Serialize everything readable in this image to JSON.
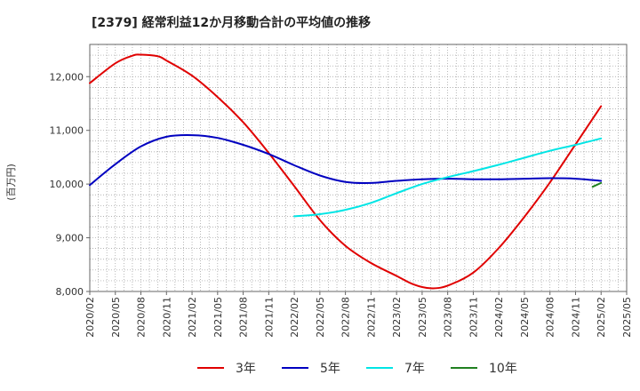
{
  "chart_data": {
    "type": "line",
    "title": "[2379]  経常利益12か月移動合計の平均値の推移",
    "ylabel": "(百万円)",
    "xlabel": "",
    "ylim": [
      8000,
      12600
    ],
    "yticks": [
      8000,
      9000,
      10000,
      11000,
      12000
    ],
    "ytick_labels": [
      "8,000",
      "9,000",
      "10,000",
      "11,000",
      "12,000"
    ],
    "x_range": [
      "2020-02",
      "2025-05"
    ],
    "xtick_labels": [
      "2020/02",
      "2020/05",
      "2020/08",
      "2020/11",
      "2021/02",
      "2021/05",
      "2021/08",
      "2021/11",
      "2022/02",
      "2022/05",
      "2022/08",
      "2022/11",
      "2023/02",
      "2023/05",
      "2023/08",
      "2023/11",
      "2024/02",
      "2024/05",
      "2024/08",
      "2024/11",
      "2025/02",
      "2025/05"
    ],
    "grid": true,
    "legend_position": "bottom",
    "series": [
      {
        "name": "3年",
        "color": "#e00000",
        "points": [
          [
            "2020-02",
            11880
          ],
          [
            "2020-05",
            12250
          ],
          [
            "2020-07",
            12390
          ],
          [
            "2020-08",
            12410
          ],
          [
            "2020-10",
            12380
          ],
          [
            "2020-11",
            12300
          ],
          [
            "2021-02",
            12020
          ],
          [
            "2021-05",
            11620
          ],
          [
            "2021-08",
            11150
          ],
          [
            "2021-11",
            10580
          ],
          [
            "2022-02",
            9960
          ],
          [
            "2022-05",
            9330
          ],
          [
            "2022-08",
            8850
          ],
          [
            "2022-11",
            8530
          ],
          [
            "2023-02",
            8290
          ],
          [
            "2023-04",
            8130
          ],
          [
            "2023-06",
            8060
          ],
          [
            "2023-08",
            8110
          ],
          [
            "2023-11",
            8350
          ],
          [
            "2024-02",
            8810
          ],
          [
            "2024-05",
            9390
          ],
          [
            "2024-08",
            10030
          ],
          [
            "2024-11",
            10740
          ],
          [
            "2025-02",
            11450
          ]
        ]
      },
      {
        "name": "5年",
        "color": "#0000c0",
        "points": [
          [
            "2020-02",
            9980
          ],
          [
            "2020-05",
            10370
          ],
          [
            "2020-08",
            10700
          ],
          [
            "2020-11",
            10880
          ],
          [
            "2021-02",
            10910
          ],
          [
            "2021-05",
            10860
          ],
          [
            "2021-08",
            10730
          ],
          [
            "2021-11",
            10560
          ],
          [
            "2022-02",
            10350
          ],
          [
            "2022-05",
            10160
          ],
          [
            "2022-08",
            10040
          ],
          [
            "2022-11",
            10020
          ],
          [
            "2023-02",
            10060
          ],
          [
            "2023-05",
            10090
          ],
          [
            "2023-08",
            10100
          ],
          [
            "2023-11",
            10090
          ],
          [
            "2024-02",
            10090
          ],
          [
            "2024-05",
            10100
          ],
          [
            "2024-08",
            10110
          ],
          [
            "2024-11",
            10100
          ],
          [
            "2025-02",
            10060
          ]
        ]
      },
      {
        "name": "7年",
        "color": "#00e5e5",
        "points": [
          [
            "2022-02",
            9400
          ],
          [
            "2022-05",
            9440
          ],
          [
            "2022-08",
            9520
          ],
          [
            "2022-11",
            9650
          ],
          [
            "2023-02",
            9830
          ],
          [
            "2023-05",
            10000
          ],
          [
            "2023-08",
            10130
          ],
          [
            "2023-11",
            10240
          ],
          [
            "2024-02",
            10360
          ],
          [
            "2024-05",
            10490
          ],
          [
            "2024-08",
            10620
          ],
          [
            "2024-11",
            10730
          ],
          [
            "2025-02",
            10850
          ]
        ]
      },
      {
        "name": "10年",
        "color": "#208020",
        "points": [
          [
            "2025-01",
            9950
          ],
          [
            "2025-02",
            10020
          ]
        ]
      }
    ]
  }
}
